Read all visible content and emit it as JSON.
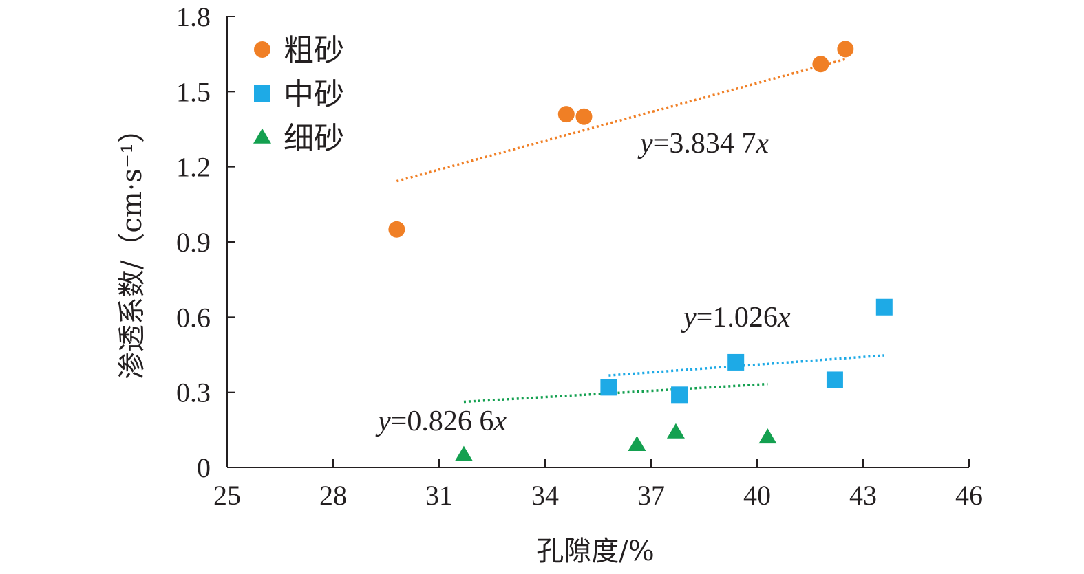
{
  "chart_data": {
    "type": "scatter",
    "xlabel": "孔隙度/%",
    "ylabel": "渗透系数/（cm·s⁻¹）",
    "xlim": [
      25,
      46
    ],
    "ylim": [
      0,
      1.8
    ],
    "xticks": [
      25,
      28,
      31,
      34,
      37,
      40,
      43,
      46
    ],
    "yticks": [
      0,
      0.3,
      0.6,
      0.9,
      1.2,
      1.5,
      1.8
    ],
    "xtick_labels": [
      "25",
      "28",
      "31",
      "34",
      "37",
      "40",
      "43",
      "46"
    ],
    "ytick_labels": [
      "0",
      "0.3",
      "0.6",
      "0.9",
      "1.2",
      "1.5",
      "1.8"
    ],
    "legend_position": "top-left",
    "grid": false,
    "series": [
      {
        "name": "粗砂",
        "marker": "circle",
        "color": "#f07f25",
        "points": [
          [
            29.8,
            0.95
          ],
          [
            34.6,
            1.41
          ],
          [
            35.1,
            1.4
          ],
          [
            41.8,
            1.61
          ],
          [
            42.5,
            1.67
          ]
        ],
        "trendline": {
          "slope": 0.038347,
          "x_range": [
            29.8,
            42.5
          ],
          "equation": "y=3.834 7x"
        }
      },
      {
        "name": "中砂",
        "marker": "square",
        "color": "#1eaae6",
        "points": [
          [
            35.8,
            0.32
          ],
          [
            37.8,
            0.29
          ],
          [
            39.4,
            0.42
          ],
          [
            42.2,
            0.35
          ],
          [
            43.6,
            0.64
          ]
        ],
        "trendline": {
          "slope": 0.01026,
          "x_range": [
            35.8,
            43.6
          ],
          "equation": "y=1.026x"
        }
      },
      {
        "name": "细砂",
        "marker": "triangle",
        "color": "#14a050",
        "points": [
          [
            31.7,
            0.05
          ],
          [
            36.6,
            0.09
          ],
          [
            37.7,
            0.14
          ],
          [
            40.3,
            0.12
          ]
        ],
        "trendline": {
          "slope": 0.008266,
          "x_range": [
            31.7,
            40.3
          ],
          "equation": "y=0.826 6x"
        }
      }
    ]
  }
}
